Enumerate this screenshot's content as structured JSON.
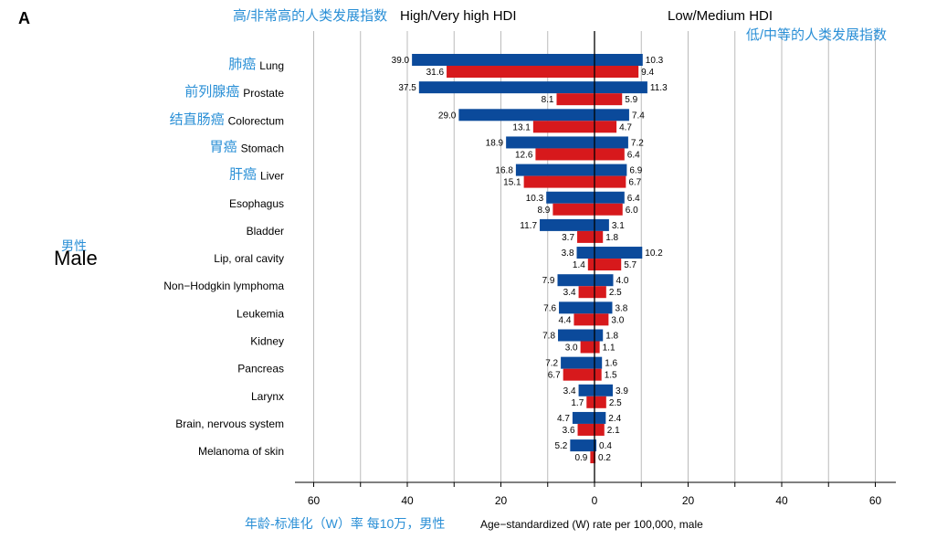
{
  "panel_letter": "A",
  "group_label_cn": "男性",
  "group_label_en": "Male",
  "header": {
    "left_cn": "高/非常高的人类发展指数",
    "left_en": "High/Very high HDI",
    "right_en": "Low/Medium HDI",
    "right_cn": "低/中等的人类发展指数"
  },
  "colors": {
    "dark_blue": "#0b4a9b",
    "red": "#d7191c",
    "cn_annotation": "#2a8fd6",
    "grid": "#bbbbbb"
  },
  "chart_data": {
    "type": "bar",
    "orientation": "horizontal-diverging",
    "xlabel_cn": "年龄-标准化（W）率 每10万，男性",
    "xlabel": "Age−standardized (W) rate per 100,000, male",
    "xlim": [
      -60,
      60
    ],
    "xticks": [
      -60,
      -40,
      -20,
      0,
      20,
      40,
      60
    ],
    "xtick_labels": [
      "60",
      "40",
      "20",
      "0",
      "20",
      "40",
      "60"
    ],
    "grid": true,
    "categories": [
      {
        "en": "Lung",
        "cn": "肺癌"
      },
      {
        "en": "Prostate",
        "cn": "前列腺癌"
      },
      {
        "en": "Colorectum",
        "cn": "结直肠癌"
      },
      {
        "en": "Stomach",
        "cn": "胃癌"
      },
      {
        "en": "Liver",
        "cn": "肝癌"
      },
      {
        "en": "Esophagus",
        "cn": ""
      },
      {
        "en": "Bladder",
        "cn": ""
      },
      {
        "en": "Lip, oral cavity",
        "cn": ""
      },
      {
        "en": "Non−Hodgkin lymphoma",
        "cn": ""
      },
      {
        "en": "Leukemia",
        "cn": ""
      },
      {
        "en": "Kidney",
        "cn": ""
      },
      {
        "en": "Pancreas",
        "cn": ""
      },
      {
        "en": "Larynx",
        "cn": ""
      },
      {
        "en": "Brain, nervous system",
        "cn": ""
      },
      {
        "en": "Melanoma of skin",
        "cn": ""
      }
    ],
    "series": [
      {
        "side": "High/Very high HDI",
        "color": "#0b4a9b",
        "values": [
          39.0,
          37.5,
          29.0,
          18.9,
          16.8,
          10.3,
          11.7,
          3.8,
          7.9,
          7.6,
          7.8,
          7.2,
          3.4,
          4.7,
          5.2
        ]
      },
      {
        "side": "High/Very high HDI",
        "color": "#d7191c",
        "values": [
          31.6,
          8.1,
          13.1,
          12.6,
          15.1,
          8.9,
          3.7,
          1.4,
          3.4,
          4.4,
          3.0,
          6.7,
          1.7,
          3.6,
          0.9
        ]
      },
      {
        "side": "Low/Medium HDI",
        "color": "#0b4a9b",
        "values": [
          10.3,
          11.3,
          7.4,
          7.2,
          6.9,
          6.4,
          3.1,
          10.2,
          4.0,
          3.8,
          1.8,
          1.6,
          3.9,
          2.4,
          0.4
        ]
      },
      {
        "side": "Low/Medium HDI",
        "color": "#d7191c",
        "values": [
          9.4,
          5.9,
          4.7,
          6.4,
          6.7,
          6.0,
          1.8,
          5.7,
          2.5,
          3.0,
          1.1,
          1.5,
          2.5,
          2.1,
          0.2
        ]
      }
    ]
  }
}
